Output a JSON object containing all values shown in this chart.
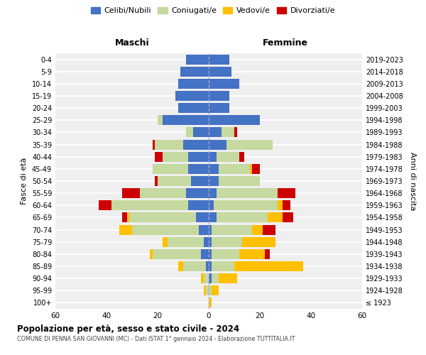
{
  "age_groups": [
    "100+",
    "95-99",
    "90-94",
    "85-89",
    "80-84",
    "75-79",
    "70-74",
    "65-69",
    "60-64",
    "55-59",
    "50-54",
    "45-49",
    "40-44",
    "35-39",
    "30-34",
    "25-29",
    "20-24",
    "15-19",
    "10-14",
    "5-9",
    "0-4"
  ],
  "birth_years": [
    "≤ 1923",
    "1924-1928",
    "1929-1933",
    "1934-1938",
    "1939-1943",
    "1944-1948",
    "1949-1953",
    "1954-1958",
    "1959-1963",
    "1964-1968",
    "1969-1973",
    "1974-1978",
    "1979-1983",
    "1984-1988",
    "1989-1993",
    "1994-1998",
    "1999-2003",
    "2004-2008",
    "2009-2013",
    "2014-2018",
    "2019-2023"
  ],
  "males": {
    "celibi": [
      0,
      0,
      0,
      1,
      3,
      2,
      4,
      5,
      8,
      9,
      7,
      8,
      8,
      10,
      6,
      18,
      12,
      13,
      12,
      11,
      9
    ],
    "coniugati": [
      0,
      1,
      2,
      9,
      19,
      14,
      26,
      26,
      30,
      18,
      13,
      14,
      10,
      11,
      3,
      2,
      0,
      0,
      0,
      0,
      0
    ],
    "vedovi": [
      0,
      1,
      1,
      2,
      1,
      2,
      5,
      1,
      0,
      0,
      0,
      0,
      0,
      0,
      0,
      0,
      0,
      0,
      0,
      0,
      0
    ],
    "divorziati": [
      0,
      0,
      0,
      0,
      0,
      0,
      0,
      2,
      5,
      7,
      1,
      0,
      3,
      1,
      0,
      0,
      0,
      0,
      0,
      0,
      0
    ]
  },
  "females": {
    "nubili": [
      0,
      0,
      1,
      1,
      1,
      1,
      1,
      3,
      2,
      3,
      4,
      4,
      3,
      7,
      5,
      20,
      8,
      8,
      12,
      9,
      8
    ],
    "coniugate": [
      0,
      1,
      3,
      9,
      11,
      12,
      16,
      20,
      25,
      24,
      16,
      12,
      9,
      18,
      5,
      0,
      0,
      0,
      0,
      0,
      0
    ],
    "vedove": [
      1,
      3,
      7,
      27,
      10,
      13,
      4,
      6,
      2,
      0,
      0,
      1,
      0,
      0,
      0,
      0,
      0,
      0,
      0,
      0,
      0
    ],
    "divorziate": [
      0,
      0,
      0,
      0,
      2,
      0,
      5,
      4,
      3,
      7,
      0,
      3,
      2,
      0,
      1,
      0,
      0,
      0,
      0,
      0,
      0
    ]
  },
  "colors": {
    "celibi": "#4472c4",
    "coniugati": "#c5d9a0",
    "vedovi": "#ffc000",
    "divorziati": "#cc0000"
  },
  "title": "Popolazione per età, sesso e stato civile - 2024",
  "subtitle": "COMUNE DI PENNA SAN GIOVANNI (MC) - Dati ISTAT 1° gennaio 2024 - Elaborazione TUTTITALIA.IT",
  "xlabel_left": "Maschi",
  "xlabel_right": "Femmine",
  "ylabel_left": "Fasce di età",
  "ylabel_right": "Anni di nascita",
  "xlim": 60,
  "legend_labels": [
    "Celibi/Nubili",
    "Coniugati/e",
    "Vedovi/e",
    "Divorziati/e"
  ],
  "bg_color": "#ffffff",
  "plot_bg": "#efefef",
  "grid_color": "#ffffff"
}
